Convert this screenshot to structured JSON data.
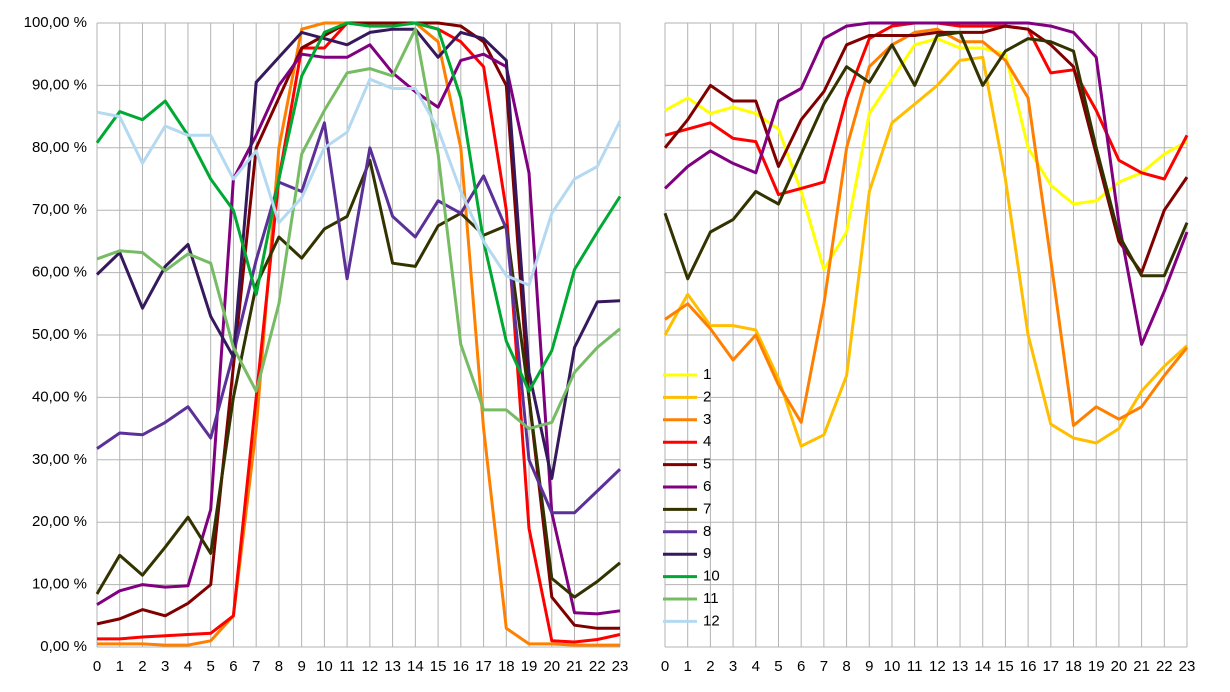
{
  "chart_data": {
    "type": "line",
    "x": [
      0,
      1,
      2,
      3,
      4,
      5,
      6,
      7,
      8,
      9,
      10,
      11,
      12,
      13,
      14,
      15,
      16,
      17,
      18,
      19,
      20,
      21,
      22,
      23
    ],
    "ylim": [
      0,
      100
    ],
    "yticks": [
      {
        "value": 0,
        "label": "0,00 %"
      },
      {
        "value": 10,
        "label": "10,00 %"
      },
      {
        "value": 20,
        "label": "20,00 %"
      },
      {
        "value": 30,
        "label": "30,00 %"
      },
      {
        "value": 40,
        "label": "40,00 %"
      },
      {
        "value": 50,
        "label": "50,00 %"
      },
      {
        "value": 60,
        "label": "60,00 %"
      },
      {
        "value": 70,
        "label": "70,00 %"
      },
      {
        "value": 80,
        "label": "80,00 %"
      },
      {
        "value": 90,
        "label": "90,00 %"
      },
      {
        "value": 100,
        "label": "100,00 %"
      }
    ],
    "grid": true,
    "series": [
      {
        "name": "1",
        "color": "#ffff00",
        "values_right": [
          86,
          88,
          85.5,
          86.5,
          85.5,
          83,
          73,
          60.5,
          66.5,
          85.5,
          91,
          96.5,
          97.5,
          96,
          96,
          95,
          80,
          74,
          71,
          71.5,
          74.5,
          76,
          79,
          81
        ]
      },
      {
        "name": "2",
        "color": "#ffbf00",
        "values_right": [
          50,
          56.5,
          51.5,
          51.5,
          50.8,
          43,
          32.2,
          34,
          43.5,
          73,
          84,
          87,
          90,
          94,
          94.5,
          75,
          50,
          35.7,
          33.5,
          32.7,
          35,
          41,
          45,
          48.3
        ]
      },
      {
        "name": "3",
        "color": "#ff8000",
        "values": [
          0.5,
          0.5,
          0.5,
          0.3,
          0.3,
          1,
          5,
          35,
          80,
          99,
          100,
          100,
          100,
          100,
          100,
          97,
          80,
          35,
          3,
          0.5,
          0.5,
          0.3,
          0.3,
          0.3
        ],
        "values_right": [
          52.5,
          55,
          51,
          46,
          50,
          42,
          36,
          55,
          80,
          93,
          96.5,
          98.5,
          99,
          97,
          97,
          94,
          88,
          62,
          35.5,
          38.5,
          36.5,
          38.5,
          43.5,
          48
        ]
      },
      {
        "name": "4",
        "color": "#ff0000",
        "values": [
          1.3,
          1.3,
          1.6,
          1.8,
          2,
          2.2,
          5,
          40,
          75,
          96,
          96,
          100,
          100,
          100,
          100,
          99,
          97,
          93,
          70,
          19,
          1,
          0.8,
          1.2,
          2
        ],
        "values_right": [
          82,
          83,
          84,
          81.5,
          81,
          72.5,
          73.5,
          74.5,
          88,
          97.5,
          99.5,
          100,
          100,
          99.5,
          99.5,
          99.5,
          99,
          92,
          92.5,
          86,
          78,
          76,
          75,
          82
        ]
      },
      {
        "name": "5",
        "color": "#800000",
        "values": [
          3.7,
          4.5,
          6,
          5,
          7,
          10,
          45,
          80,
          88,
          96,
          98,
          100,
          100,
          100,
          100,
          100,
          99.5,
          97,
          90,
          40,
          8,
          3.5,
          3,
          3
        ],
        "values_right": [
          80,
          84.5,
          90,
          87.5,
          87.5,
          77,
          84.5,
          89,
          96.5,
          98,
          98,
          98,
          98.5,
          98.5,
          98.5,
          99.5,
          99,
          96.5,
          93,
          79,
          65,
          60,
          70,
          75.3
        ]
      },
      {
        "name": "6",
        "color": "#800080",
        "values": [
          6.8,
          9,
          10,
          9.6,
          9.8,
          22,
          75,
          82,
          90,
          95,
          94.5,
          94.5,
          96.5,
          92,
          89,
          86.5,
          94,
          95,
          93,
          76,
          21.5,
          5.5,
          5.3,
          5.8
        ],
        "values_right": [
          73.5,
          77,
          79.5,
          77.5,
          76,
          87.5,
          89.5,
          97.5,
          99.5,
          100,
          100,
          100,
          100,
          100,
          100,
          100,
          100,
          99.5,
          98.5,
          94.5,
          68,
          48.5,
          57,
          66.5
        ]
      },
      {
        "name": "7",
        "color": "#333300",
        "values": [
          8.5,
          14.7,
          11.5,
          16,
          20.8,
          15,
          40,
          58,
          65.7,
          62.3,
          67,
          69,
          78,
          61.5,
          61,
          67.5,
          69.5,
          66,
          67.5,
          40,
          11,
          8,
          10.5,
          13.5
        ],
        "values_right": [
          69.5,
          59,
          66.5,
          68.5,
          73,
          71,
          79,
          87,
          93,
          90.5,
          96.5,
          90,
          98,
          98.5,
          90,
          95.5,
          97.5,
          97,
          95.5,
          80,
          66,
          59.5,
          59.5,
          68
        ]
      },
      {
        "name": "8",
        "color": "#5c3099",
        "values": [
          31.8,
          34.3,
          34,
          36,
          38.5,
          33.5,
          47,
          62,
          74.5,
          73,
          84,
          59,
          80,
          69,
          65.7,
          71.5,
          69.5,
          75.5,
          67,
          30,
          21.5,
          21.5,
          25,
          28.5
        ]
      },
      {
        "name": "9",
        "color": "#35195c",
        "values": [
          59.7,
          63.2,
          54.3,
          61,
          64.5,
          53,
          46.5,
          90.5,
          94.5,
          98.5,
          97.5,
          96.5,
          98.5,
          99,
          99,
          94.5,
          98.5,
          97.5,
          94,
          44,
          27,
          48,
          55.3,
          55.5
        ]
      },
      {
        "name": "10",
        "color": "#00a933",
        "values": [
          80.8,
          85.8,
          84.5,
          87.5,
          82,
          75,
          70,
          56.5,
          75,
          91.5,
          98.5,
          100,
          99.5,
          99.5,
          100,
          99,
          88,
          65,
          49,
          41,
          47.5,
          60.5,
          66.5,
          72.2
        ]
      },
      {
        "name": "11",
        "color": "#77bc65",
        "values": [
          62.2,
          63.5,
          63.2,
          60.3,
          63,
          61.5,
          48,
          41,
          55,
          79,
          86,
          92,
          92.7,
          91.5,
          99,
          79,
          48.5,
          38,
          38,
          35,
          36,
          44,
          48,
          51
        ]
      },
      {
        "name": "12",
        "color": "#b4d9f0",
        "values": [
          85.7,
          85,
          77.5,
          83.5,
          82,
          82,
          75,
          79.5,
          68,
          72,
          80,
          82.5,
          91,
          89.5,
          89.5,
          83,
          73,
          65,
          59.5,
          58,
          69.5,
          75,
          77,
          84.3
        ]
      }
    ]
  }
}
